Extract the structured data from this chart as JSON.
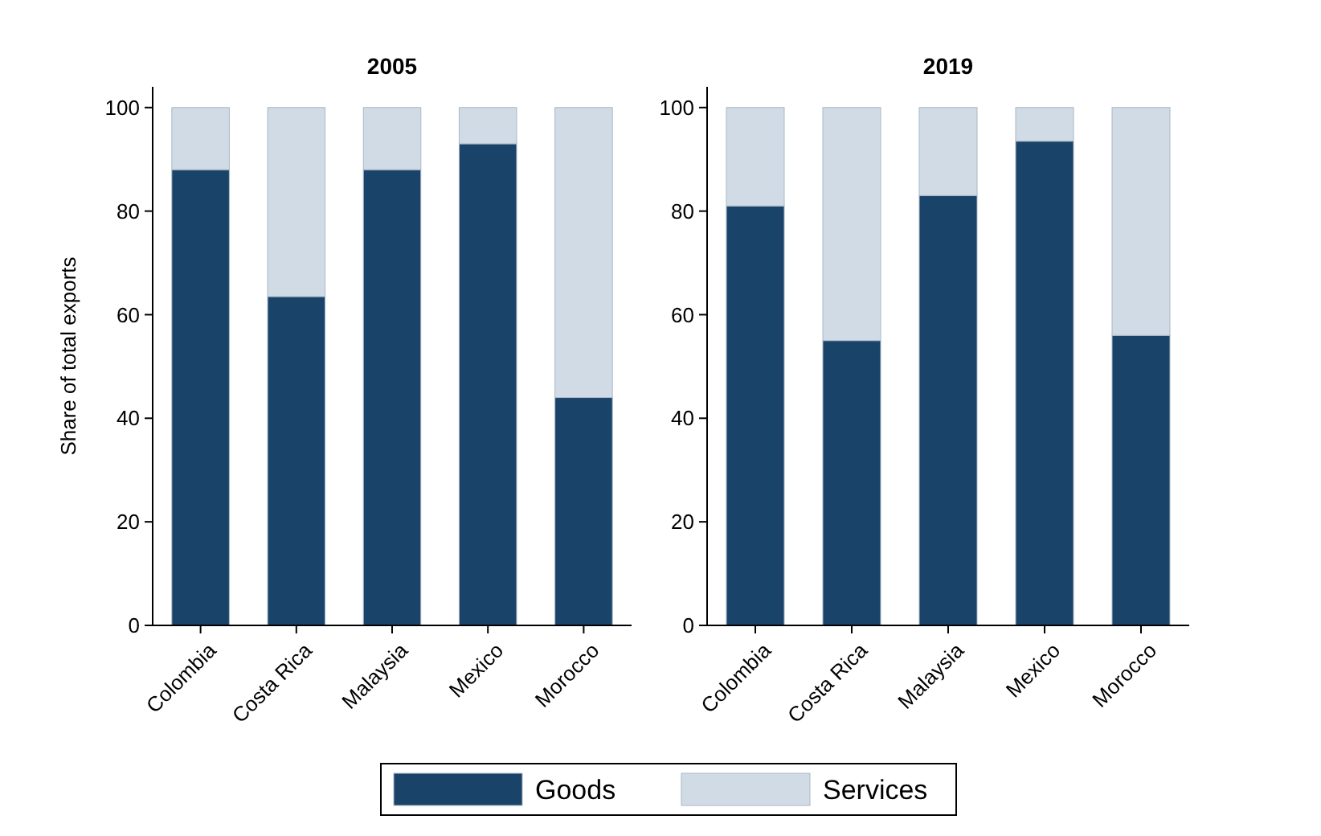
{
  "chart_data": [
    {
      "type": "bar",
      "title": "2005",
      "ylabel": "Share of total exports",
      "categories": [
        "Colombia",
        "Costa Rica",
        "Malaysia",
        "Mexico",
        "Morocco"
      ],
      "stacked": true,
      "legend": "bottom",
      "ylim": [
        0,
        104
      ],
      "yticks": [
        0,
        20,
        40,
        60,
        80,
        100
      ],
      "series": [
        {
          "name": "Goods",
          "color": "#1a4369",
          "values": [
            88,
            63.5,
            88,
            93,
            44
          ]
        },
        {
          "name": "Services",
          "color": "#d0dbe5",
          "values": [
            12,
            36.5,
            12,
            7,
            56
          ]
        }
      ]
    },
    {
      "type": "bar",
      "title": "2019",
      "categories": [
        "Colombia",
        "Costa Rica",
        "Malaysia",
        "Mexico",
        "Morocco"
      ],
      "stacked": true,
      "legend": "bottom",
      "ylim": [
        0,
        104
      ],
      "yticks": [
        0,
        20,
        40,
        60,
        80,
        100
      ],
      "series": [
        {
          "name": "Goods",
          "color": "#1a4369",
          "values": [
            81,
            55,
            83,
            93.5,
            56
          ]
        },
        {
          "name": "Services",
          "color": "#d0dbe5",
          "values": [
            19,
            45,
            17,
            6.5,
            44
          ]
        }
      ]
    }
  ]
}
